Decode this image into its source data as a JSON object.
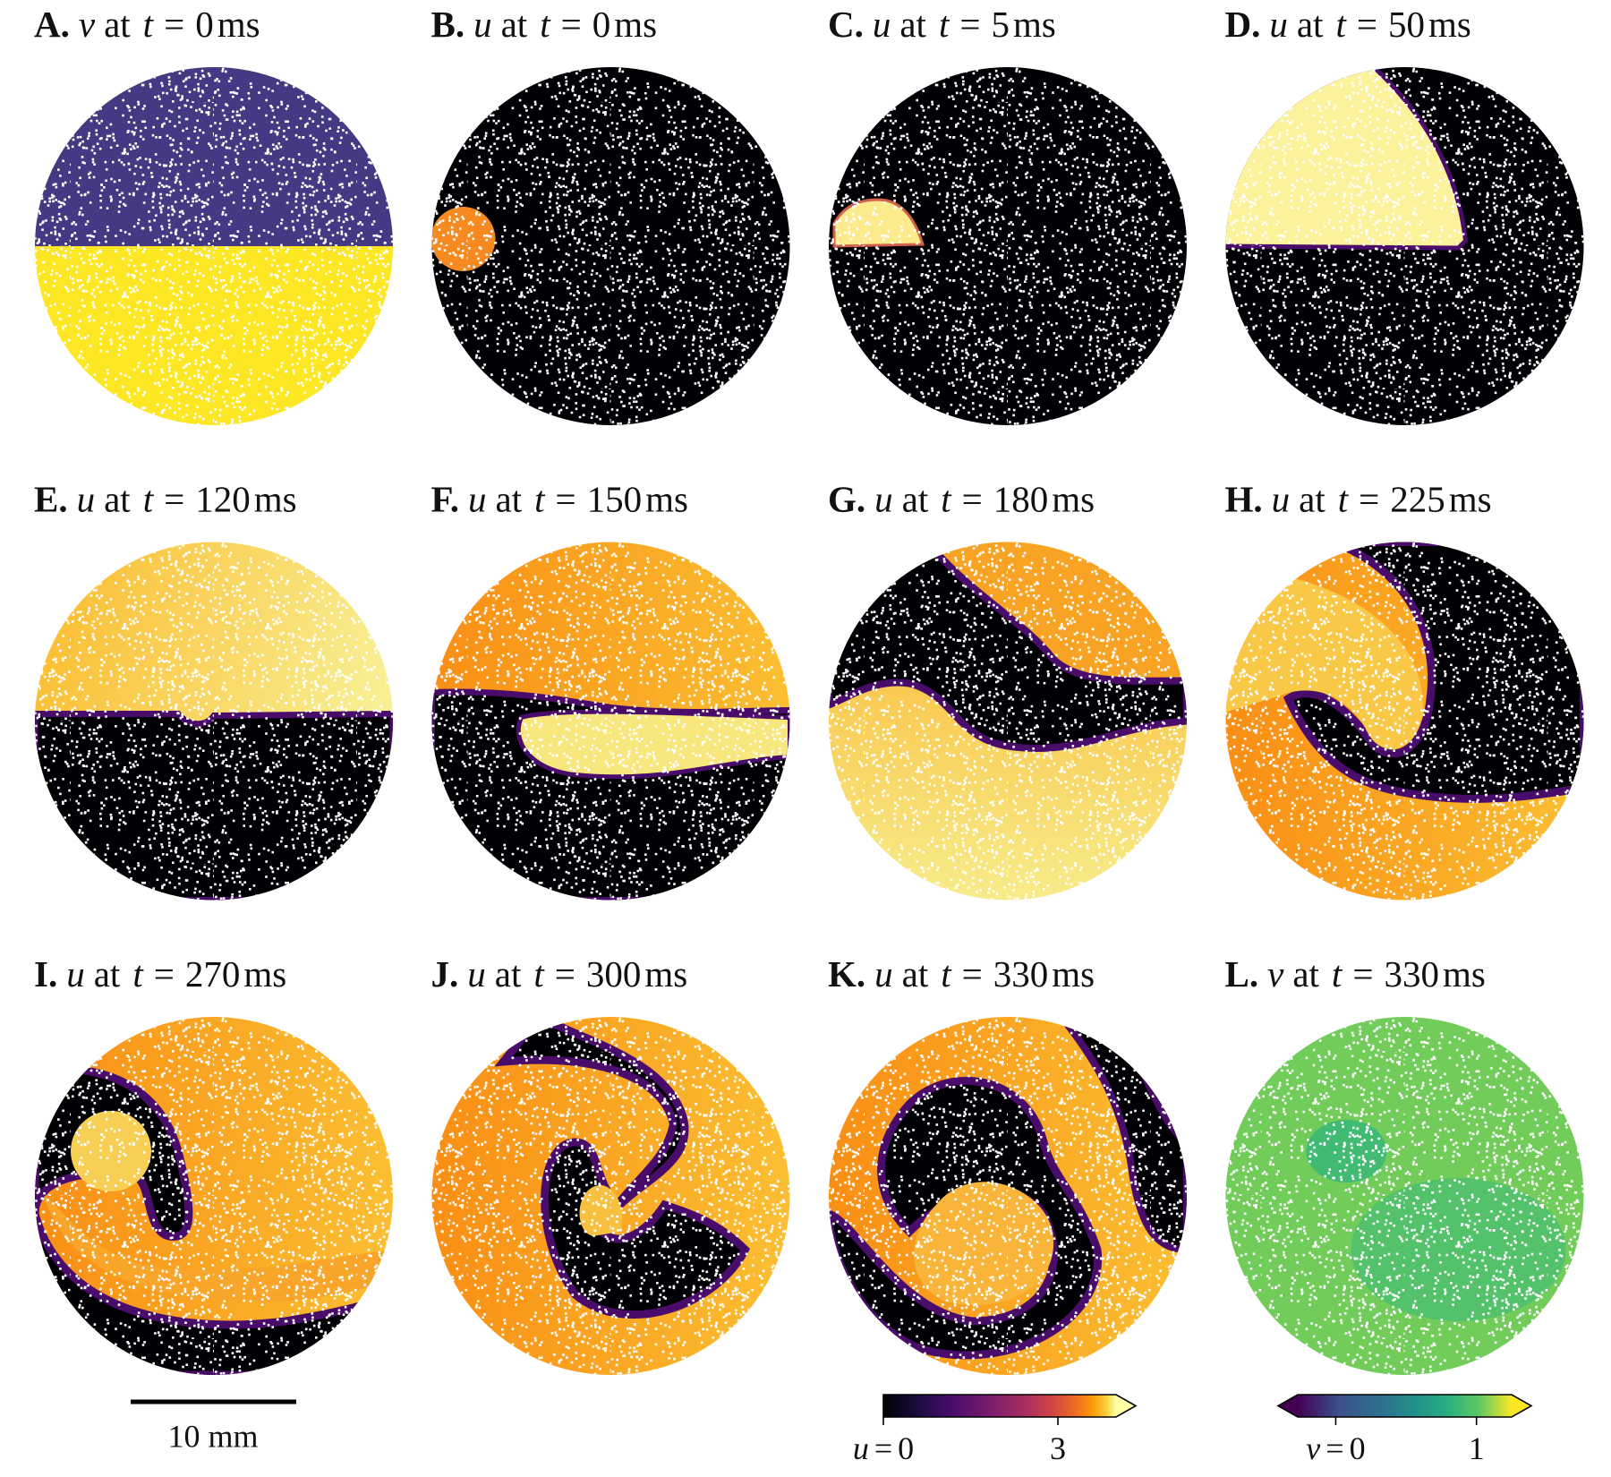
{
  "panels": [
    {
      "letter": "A.",
      "field": "v",
      "at": "at",
      "time_symbol": "t",
      "equals": "=",
      "time": "0",
      "unit": "ms"
    },
    {
      "letter": "B.",
      "field": "u",
      "at": "at",
      "time_symbol": "t",
      "equals": "=",
      "time": "0",
      "unit": "ms"
    },
    {
      "letter": "C.",
      "field": "u",
      "at": "at",
      "time_symbol": "t",
      "equals": "=",
      "time": "5",
      "unit": "ms"
    },
    {
      "letter": "D.",
      "field": "u",
      "at": "at",
      "time_symbol": "t",
      "equals": "=",
      "time": "50",
      "unit": "ms"
    },
    {
      "letter": "E.",
      "field": "u",
      "at": "at",
      "time_symbol": "t",
      "equals": "=",
      "time": "120",
      "unit": "ms"
    },
    {
      "letter": "F.",
      "field": "u",
      "at": "at",
      "time_symbol": "t",
      "equals": "=",
      "time": "150",
      "unit": "ms"
    },
    {
      "letter": "G.",
      "field": "u",
      "at": "at",
      "time_symbol": "t",
      "equals": "=",
      "time": "180",
      "unit": "ms"
    },
    {
      "letter": "H.",
      "field": "u",
      "at": "at",
      "time_symbol": "t",
      "equals": "=",
      "time": "225",
      "unit": "ms"
    },
    {
      "letter": "I.",
      "field": "u",
      "at": "at",
      "time_symbol": "t",
      "equals": "=",
      "time": "270",
      "unit": "ms"
    },
    {
      "letter": "J.",
      "field": "u",
      "at": "at",
      "time_symbol": "t",
      "equals": "=",
      "time": "300",
      "unit": "ms"
    },
    {
      "letter": "K.",
      "field": "u",
      "at": "at",
      "time_symbol": "t",
      "equals": "=",
      "time": "330",
      "unit": "ms"
    },
    {
      "letter": "L.",
      "field": "v",
      "at": "at",
      "time_symbol": "t",
      "equals": "=",
      "time": "330",
      "unit": "ms"
    }
  ],
  "scale_bar": {
    "label": "10 mm"
  },
  "colorbars": [
    {
      "symbol": "u",
      "equals": "=",
      "ticks": [
        0,
        3
      ],
      "lim": [
        0,
        4
      ]
    },
    {
      "symbol": "v",
      "equals": "=",
      "ticks": [
        0,
        1
      ],
      "lim": [
        -0.27,
        1.25
      ]
    }
  ]
}
